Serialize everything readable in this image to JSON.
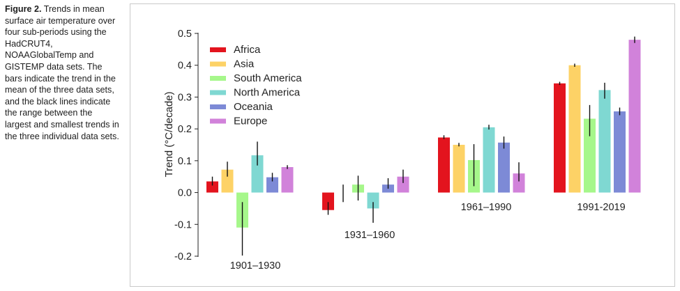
{
  "caption": {
    "label": "Figure 2.",
    "text": "Trends in mean surface air temperature over four sub-periods using the HadCRUT4, NOAAGlobalTemp and GISTEMP data sets. The bars indicate the trend in the mean of the three data sets, and the black lines indicate the range between the largest and smallest trends in the three individual data sets."
  },
  "chart_data": {
    "type": "bar",
    "title": "",
    "xlabel": "",
    "ylabel": "Trend (°C/decade)",
    "ylim": [
      -0.2,
      0.5
    ],
    "yticks": [
      "0.5",
      "0.4",
      "0.3",
      "0.2",
      "0.1",
      "0.0",
      "-0.1",
      "-0.2"
    ],
    "ytick_values": [
      0.5,
      0.4,
      0.3,
      0.2,
      0.1,
      0.0,
      -0.1,
      -0.2
    ],
    "legend_position": "top-left",
    "categories": [
      "1901–1930",
      "1931–1960",
      "1961–1990",
      "1991-2019"
    ],
    "series": [
      {
        "name": "Africa",
        "color": "#e3141e",
        "values": [
          0.035,
          -0.055,
          0.173,
          0.343
        ],
        "range": [
          [
            0.022,
            0.05
          ],
          [
            -0.07,
            -0.03
          ],
          [
            0.168,
            0.18
          ],
          [
            0.338,
            0.348
          ]
        ]
      },
      {
        "name": "Asia",
        "color": "#fdd266",
        "values": [
          0.072,
          0.0,
          0.15,
          0.4
        ],
        "range": [
          [
            0.05,
            0.097
          ],
          [
            -0.03,
            0.025
          ],
          [
            0.145,
            0.156
          ],
          [
            0.395,
            0.405
          ]
        ]
      },
      {
        "name": "South America",
        "color": "#a6f78b",
        "values": [
          -0.11,
          0.025,
          0.102,
          0.232
        ],
        "range": [
          [
            -0.198,
            -0.03
          ],
          [
            -0.025,
            0.053
          ],
          [
            0.02,
            0.152
          ],
          [
            0.177,
            0.275
          ]
        ]
      },
      {
        "name": "North America",
        "color": "#7fd8d2",
        "values": [
          0.117,
          -0.05,
          0.205,
          0.322
        ],
        "range": [
          [
            0.085,
            0.16
          ],
          [
            -0.095,
            -0.03
          ],
          [
            0.198,
            0.213
          ],
          [
            0.295,
            0.345
          ]
        ]
      },
      {
        "name": "Oceania",
        "color": "#7d8ad6",
        "values": [
          0.048,
          0.025,
          0.157,
          0.255
        ],
        "range": [
          [
            0.035,
            0.062
          ],
          [
            0.012,
            0.045
          ],
          [
            0.138,
            0.176
          ],
          [
            0.243,
            0.267
          ]
        ]
      },
      {
        "name": "Europe",
        "color": "#d182da",
        "values": [
          0.08,
          0.05,
          0.06,
          0.48
        ],
        "range": [
          [
            0.074,
            0.086
          ],
          [
            0.03,
            0.072
          ],
          [
            0.035,
            0.095
          ],
          [
            0.47,
            0.49
          ]
        ]
      }
    ]
  }
}
